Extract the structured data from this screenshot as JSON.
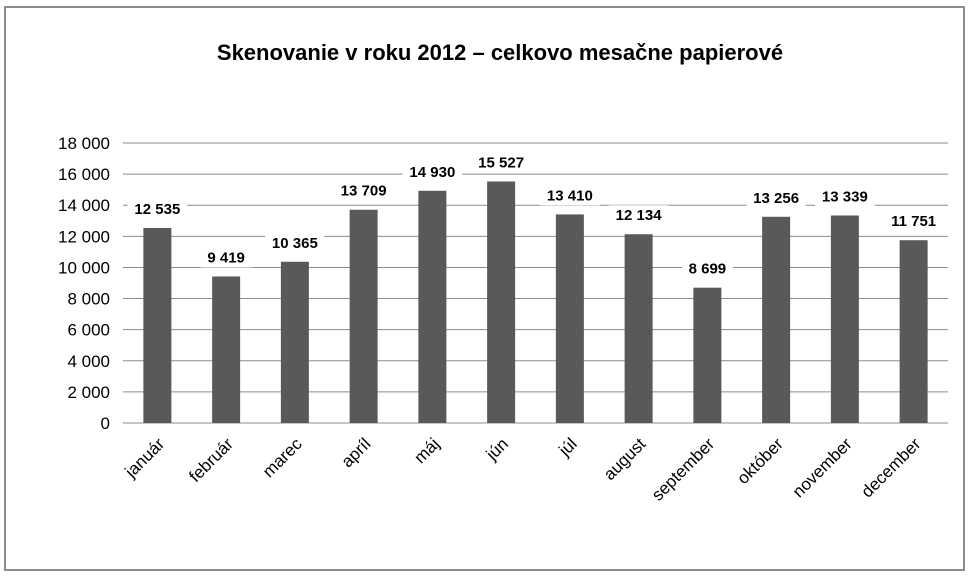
{
  "chart_data": {
    "type": "bar",
    "title": "Skenovanie v roku 2012 – celkovo mesačne papierové",
    "xlabel": "",
    "ylabel": "",
    "ylim": [
      0,
      18000
    ],
    "ytick_step": 2000,
    "ytick_labels": [
      "0",
      "2 000",
      "4 000",
      "6 000",
      "8 000",
      "10 000",
      "12 000",
      "14 000",
      "16 000",
      "18 000"
    ],
    "grid": true,
    "legend": "none",
    "bar_color": "#595959",
    "categories": [
      "január",
      "február",
      "marec",
      "apríl",
      "máj",
      "jún",
      "júl",
      "august",
      "september",
      "október",
      "november",
      "december"
    ],
    "values": [
      12535,
      9419,
      10365,
      13709,
      14930,
      15527,
      13410,
      12134,
      8699,
      13256,
      13339,
      11751
    ],
    "value_labels": [
      "12 535",
      "9 419",
      "10 365",
      "13 709",
      "14 930",
      "15 527",
      "13 410",
      "12 134",
      "8 699",
      "13 256",
      "13 339",
      "11 751"
    ]
  }
}
